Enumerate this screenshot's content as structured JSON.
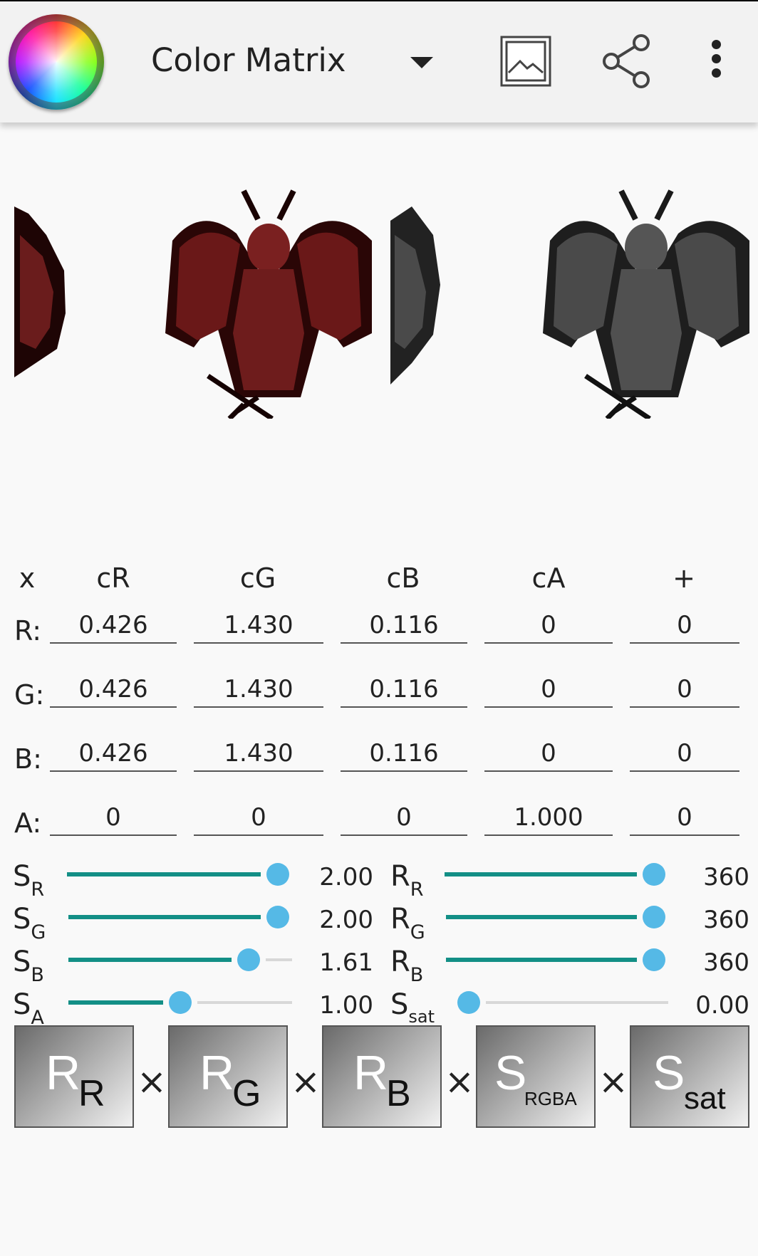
{
  "app": {
    "title": "Color Matrix"
  },
  "icons": {
    "logo": "color-wheel-icon",
    "dropdown": "dropdown-arrow-icon",
    "image": "image-icon",
    "share": "share-icon",
    "more": "more-vert-icon"
  },
  "matrix": {
    "columns": [
      "x",
      "cR",
      "cG",
      "cB",
      "cA",
      "+"
    ],
    "rows": [
      {
        "label": "R:",
        "values": [
          "0.426",
          "1.430",
          "0.116",
          "0",
          "0"
        ]
      },
      {
        "label": "G:",
        "values": [
          "0.426",
          "1.430",
          "0.116",
          "0",
          "0"
        ]
      },
      {
        "label": "B:",
        "values": [
          "0.426",
          "1.430",
          "0.116",
          "0",
          "0"
        ]
      },
      {
        "label": "A:",
        "values": [
          "0",
          "0",
          "0",
          "1.000",
          "0"
        ]
      }
    ]
  },
  "sliders_left": [
    {
      "base": "S",
      "sub": "R",
      "value": "2.00",
      "level": 1.0
    },
    {
      "base": "S",
      "sub": "G",
      "value": "2.00",
      "level": 1.0
    },
    {
      "base": "S",
      "sub": "B",
      "value": "1.61",
      "level": 0.85
    },
    {
      "base": "S",
      "sub": "A",
      "value": "1.00",
      "level": 0.5
    }
  ],
  "sliders_right": [
    {
      "base": "R",
      "sub": "R",
      "value": "360",
      "level": 1.0
    },
    {
      "base": "R",
      "sub": "G",
      "value": "360",
      "level": 1.0
    },
    {
      "base": "R",
      "sub": "B",
      "value": "360",
      "level": 1.0
    },
    {
      "base": "S",
      "sub": "sat",
      "value": "0.00",
      "level": 0.0
    }
  ],
  "operator": "×",
  "tiles": [
    {
      "base": "R",
      "sub": "R"
    },
    {
      "base": "R",
      "sub": "G"
    },
    {
      "base": "R",
      "sub": "B"
    },
    {
      "base": "S",
      "sub": "RGBA"
    },
    {
      "base": "S",
      "sub": "sat"
    }
  ],
  "colors": {
    "accent_track": "#138f86",
    "thumb": "#55b9e6",
    "creature_original": "#5a1414",
    "creature_result": "#3a3a3a"
  }
}
